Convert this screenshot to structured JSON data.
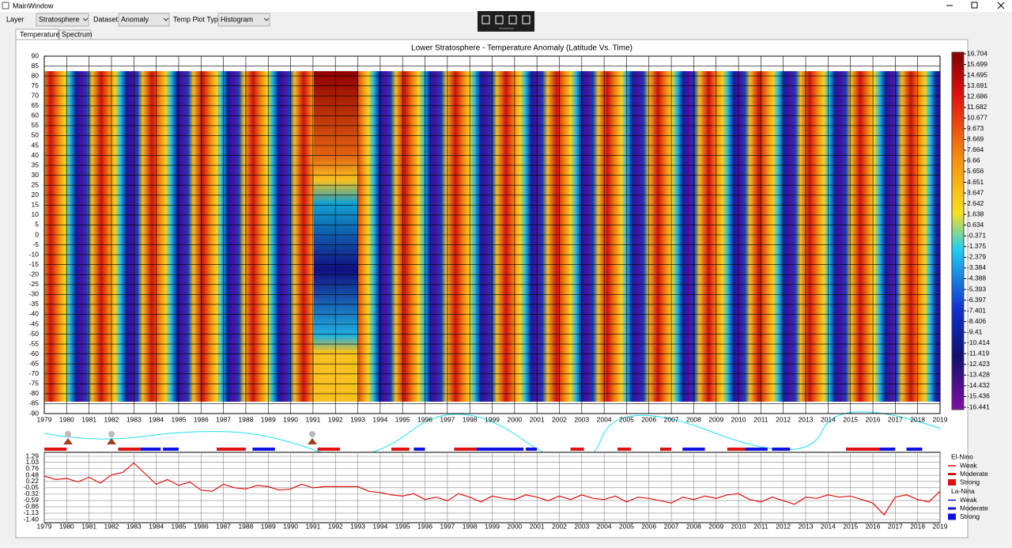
{
  "window": {
    "title": "MainWindow"
  },
  "toolbar": {
    "layer_label": "Layer",
    "layer_value": "Stratosphere",
    "dataset_label": "Dataset",
    "dataset_value": "Anomaly",
    "plot_type_label": "Temp Plot Type",
    "plot_type_value": "Histogram"
  },
  "tabs": [
    "Temperature",
    "Spectrum"
  ],
  "chart_data": [
    {
      "type": "heatmap",
      "title": "Lower Stratosphere - Temperature Anomaly  (Latitude Vs. Time)",
      "xlim": [
        1979,
        2019
      ],
      "xticks": [
        1979,
        1980,
        1981,
        1982,
        1983,
        1984,
        1985,
        1986,
        1987,
        1988,
        1989,
        1990,
        1991,
        1992,
        1993,
        1994,
        1995,
        1996,
        1997,
        1998,
        1999,
        2000,
        2001,
        2002,
        2003,
        2004,
        2005,
        2006,
        2007,
        2008,
        2009,
        2010,
        2011,
        2012,
        2013,
        2014,
        2015,
        2016,
        2017,
        2018,
        2019
      ],
      "ylim": [
        -90,
        90
      ],
      "yticks": [
        90,
        85,
        80,
        75,
        70,
        65,
        60,
        55,
        50,
        45,
        40,
        35,
        30,
        25,
        20,
        15,
        10,
        5,
        0,
        -5,
        -10,
        -15,
        -20,
        -25,
        -30,
        -35,
        -40,
        -45,
        -50,
        -55,
        -60,
        -65,
        -70,
        -75,
        -80,
        -85,
        -90
      ],
      "grid": true,
      "clim": [
        -16.441,
        16.704
      ],
      "colorbar_ticks": [
        16.704,
        15.699,
        14.695,
        13.691,
        12.686,
        11.682,
        10.677,
        9.673,
        8.669,
        7.664,
        6.66,
        5.656,
        4.651,
        3.647,
        2.642,
        1.638,
        0.634,
        -0.371,
        -1.375,
        -2.379,
        -3.384,
        -4.388,
        -5.393,
        -6.397,
        -7.401,
        -8.406,
        -9.41,
        -10.414,
        -11.419,
        -12.423,
        -13.428,
        -14.432,
        -15.436,
        -16.441
      ]
    },
    {
      "type": "line",
      "color": "#e01010",
      "x": [
        1979,
        1979.5,
        1980,
        1980.5,
        1981,
        1981.5,
        1982,
        1982.5,
        1983,
        1983.5,
        1984,
        1984.5,
        1985,
        1985.5,
        1986,
        1986.5,
        1987,
        1987.5,
        1988,
        1988.5,
        1989,
        1989.5,
        1990,
        1990.5,
        1991,
        1991.5,
        1992,
        1992.5,
        1993,
        1993.5,
        1994,
        1994.5,
        1995,
        1995.5,
        1996,
        1996.5,
        1997,
        1997.5,
        1998,
        1998.5,
        1999,
        1999.5,
        2000,
        2000.5,
        2001,
        2001.5,
        2002,
        2002.5,
        2003,
        2003.5,
        2004,
        2004.5,
        2005,
        2005.5,
        2006,
        2006.5,
        2007,
        2007.5,
        2008,
        2008.5,
        2009,
        2009.5,
        2010,
        2010.5,
        2011,
        2011.5,
        2012,
        2012.5,
        2013,
        2013.5,
        2014,
        2014.5,
        2015,
        2015.5,
        2016,
        2016.5,
        2017,
        2017.5,
        2018,
        2018.5,
        2019
      ],
      "values": [
        0.45,
        0.3,
        0.35,
        0.2,
        0.4,
        0.15,
        0.5,
        0.6,
        1.0,
        0.55,
        0.1,
        0.3,
        0.05,
        0.2,
        -0.15,
        -0.2,
        0.1,
        -0.05,
        -0.1,
        0.05,
        0.0,
        -0.15,
        -0.1,
        0.1,
        -0.05,
        0.0,
        0.0,
        0.0,
        0.0,
        -0.2,
        -0.25,
        -0.35,
        -0.4,
        -0.3,
        -0.55,
        -0.45,
        -0.6,
        -0.3,
        -0.45,
        -0.65,
        -0.4,
        -0.5,
        -0.55,
        -0.35,
        -0.45,
        -0.6,
        -0.4,
        -0.55,
        -0.35,
        -0.5,
        -0.55,
        -0.4,
        -0.65,
        -0.45,
        -0.5,
        -0.6,
        -0.7,
        -0.45,
        -0.55,
        -0.4,
        -0.5,
        -0.35,
        -0.3,
        -0.55,
        -0.65,
        -0.45,
        -0.6,
        -0.75,
        -0.45,
        -0.5,
        -0.35,
        -0.45,
        -0.4,
        -0.55,
        -0.7,
        -1.2,
        -0.45,
        -0.35,
        -0.55,
        -0.65,
        -0.2
      ],
      "xlim": [
        1979,
        2019
      ],
      "xticks": [
        1979,
        1980,
        1981,
        1982,
        1983,
        1984,
        1985,
        1986,
        1987,
        1988,
        1989,
        1990,
        1991,
        1992,
        1993,
        1994,
        1995,
        1996,
        1997,
        1998,
        1999,
        2000,
        2001,
        2002,
        2003,
        2004,
        2005,
        2006,
        2007,
        2008,
        2009,
        2010,
        2011,
        2012,
        2013,
        2014,
        2015,
        2016,
        2017,
        2018,
        2019
      ],
      "ylim": [
        -1.4,
        1.29
      ],
      "yticks": [
        1.29,
        1.03,
        0.76,
        0.48,
        0.22,
        -0.05,
        -0.32,
        -0.59,
        -0.86,
        -1.13,
        {
          "value": -1.4,
          "label": "-1.40"
        }
      ],
      "grid": true,
      "enso": [
        {
          "start": 1979.0,
          "end": 1980.0,
          "color": "#e01010"
        },
        {
          "start": 1982.3,
          "end": 1983.3,
          "color": "#e01010"
        },
        {
          "start": 1983.3,
          "end": 1984.2,
          "color": "#1010e0"
        },
        {
          "start": 1984.3,
          "end": 1985.0,
          "color": "#1010e0"
        },
        {
          "start": 1986.7,
          "end": 1988.0,
          "color": "#e01010"
        },
        {
          "start": 1988.3,
          "end": 1989.3,
          "color": "#1010e0"
        },
        {
          "start": 1991.2,
          "end": 1992.2,
          "color": "#e01010"
        },
        {
          "start": 1994.5,
          "end": 1995.3,
          "color": "#e01010"
        },
        {
          "start": 1995.5,
          "end": 1996.0,
          "color": "#1010e0"
        },
        {
          "start": 1997.3,
          "end": 1998.3,
          "color": "#e01010"
        },
        {
          "start": 1998.3,
          "end": 2000.4,
          "color": "#1010e0"
        },
        {
          "start": 2000.5,
          "end": 2001.0,
          "color": "#1010e0"
        },
        {
          "start": 2002.5,
          "end": 2003.1,
          "color": "#e01010"
        },
        {
          "start": 2004.6,
          "end": 2005.2,
          "color": "#e01010"
        },
        {
          "start": 2006.5,
          "end": 2007.0,
          "color": "#e01010"
        },
        {
          "start": 2007.5,
          "end": 2008.5,
          "color": "#1010e0"
        },
        {
          "start": 2009.5,
          "end": 2010.3,
          "color": "#e01010"
        },
        {
          "start": 2010.3,
          "end": 2011.3,
          "color": "#1010e0"
        },
        {
          "start": 2011.5,
          "end": 2012.3,
          "color": "#1010e0"
        },
        {
          "start": 2014.8,
          "end": 2016.3,
          "color": "#e01010"
        },
        {
          "start": 2016.3,
          "end": 2017.0,
          "color": "#1010e0"
        },
        {
          "start": 2017.5,
          "end": 2018.2,
          "color": "#1010e0"
        }
      ],
      "legend": {
        "el_nino": {
          "title": "El-Nino",
          "color": "#e01010",
          "entries": [
            "Weak",
            "Moderate",
            "Strong"
          ]
        },
        "la_nina": {
          "title": "La-Nina",
          "color": "#1010e0",
          "entries": [
            "Weak",
            "Moderate",
            "Strong"
          ]
        }
      }
    }
  ]
}
